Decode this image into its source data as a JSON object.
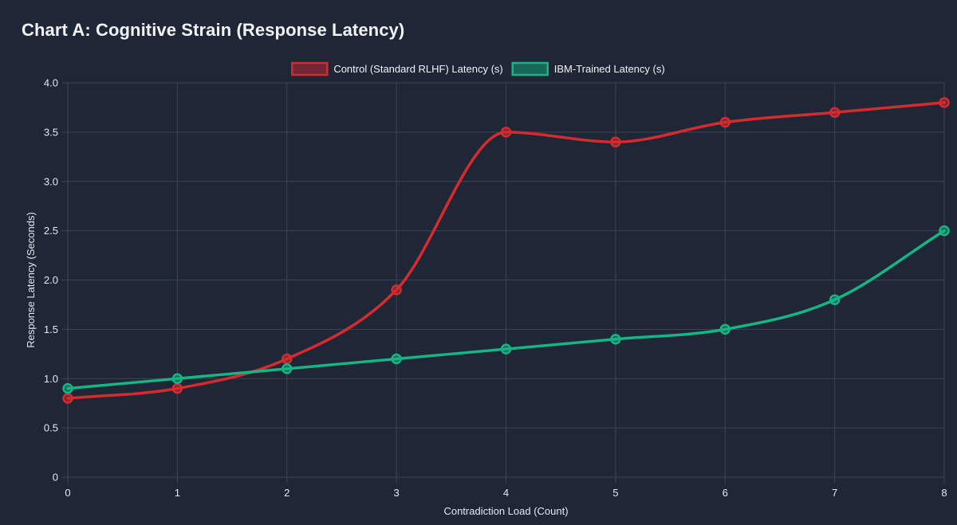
{
  "chart_data": {
    "type": "line",
    "title": "Chart A: Cognitive Strain (Response Latency)",
    "xlabel": "Contradiction Load (Count)",
    "ylabel": "Response Latency (Seconds)",
    "x": [
      0,
      1,
      2,
      3,
      4,
      5,
      6,
      7,
      8
    ],
    "xlim": [
      0,
      8
    ],
    "ylim": [
      0,
      4
    ],
    "x_ticks": [
      "0",
      "1",
      "2",
      "3",
      "4",
      "5",
      "6",
      "7",
      "8"
    ],
    "y_ticks": [
      {
        "value": 0,
        "label": "0"
      },
      {
        "value": 0.5,
        "label": "0.5"
      },
      {
        "value": 1,
        "label": "1.0"
      },
      {
        "value": 1.5,
        "label": "1.5"
      },
      {
        "value": 2,
        "label": "2.0"
      },
      {
        "value": 2.5,
        "label": "2.5"
      },
      {
        "value": 3,
        "label": "3.0"
      },
      {
        "value": 3.5,
        "label": "3.5"
      },
      {
        "value": 4,
        "label": "4.0"
      }
    ],
    "grid": true,
    "legend_position": "top-center",
    "series": [
      {
        "name": "Control (Standard RLHF) Latency (s)",
        "color": "#d62b2e",
        "fill": "rgba(214,43,46,0.45)",
        "values": [
          0.8,
          0.9,
          1.2,
          1.9,
          3.5,
          3.4,
          3.6,
          3.7,
          3.8
        ]
      },
      {
        "name": "IBM-Trained Latency (s)",
        "color": "#15b584",
        "fill": "rgba(21,181,132,0.45)",
        "values": [
          0.9,
          1.0,
          1.1,
          1.2,
          1.3,
          1.4,
          1.5,
          1.8,
          2.5
        ]
      }
    ]
  }
}
